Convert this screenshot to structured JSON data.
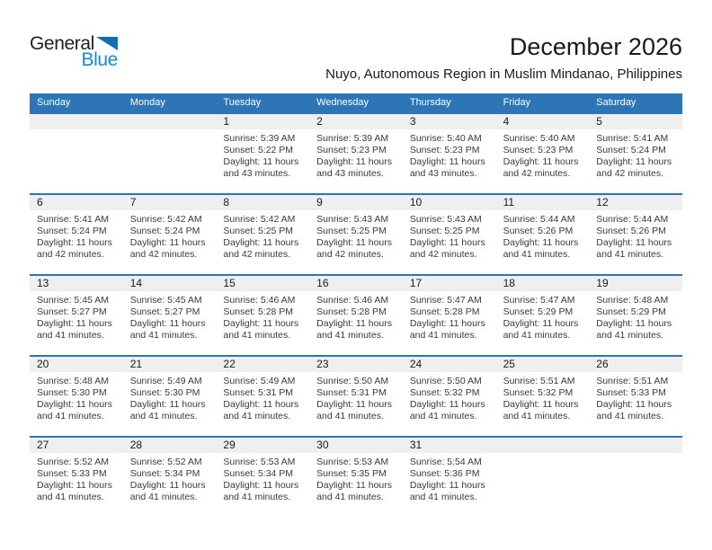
{
  "logo": {
    "text_top": "General",
    "text_bottom": "Blue"
  },
  "header": {
    "title": "December 2026",
    "subtitle": "Nuyo, Autonomous Region in Muslim Mindanao, Philippines"
  },
  "colors": {
    "header_blue": "#2e75b6",
    "band_gray": "#efefef",
    "logo_blue": "#1788d8",
    "triangle_blue": "#0f6eb4"
  },
  "calendar": {
    "weekdays": [
      "Sunday",
      "Monday",
      "Tuesday",
      "Wednesday",
      "Thursday",
      "Friday",
      "Saturday"
    ],
    "weeks": [
      [
        null,
        null,
        {
          "day": "1",
          "sunrise": "Sunrise: 5:39 AM",
          "sunset": "Sunset: 5:22 PM",
          "daylight1": "Daylight: 11 hours",
          "daylight2": "and 43 minutes."
        },
        {
          "day": "2",
          "sunrise": "Sunrise: 5:39 AM",
          "sunset": "Sunset: 5:23 PM",
          "daylight1": "Daylight: 11 hours",
          "daylight2": "and 43 minutes."
        },
        {
          "day": "3",
          "sunrise": "Sunrise: 5:40 AM",
          "sunset": "Sunset: 5:23 PM",
          "daylight1": "Daylight: 11 hours",
          "daylight2": "and 43 minutes."
        },
        {
          "day": "4",
          "sunrise": "Sunrise: 5:40 AM",
          "sunset": "Sunset: 5:23 PM",
          "daylight1": "Daylight: 11 hours",
          "daylight2": "and 42 minutes."
        },
        {
          "day": "5",
          "sunrise": "Sunrise: 5:41 AM",
          "sunset": "Sunset: 5:24 PM",
          "daylight1": "Daylight: 11 hours",
          "daylight2": "and 42 minutes."
        }
      ],
      [
        {
          "day": "6",
          "sunrise": "Sunrise: 5:41 AM",
          "sunset": "Sunset: 5:24 PM",
          "daylight1": "Daylight: 11 hours",
          "daylight2": "and 42 minutes."
        },
        {
          "day": "7",
          "sunrise": "Sunrise: 5:42 AM",
          "sunset": "Sunset: 5:24 PM",
          "daylight1": "Daylight: 11 hours",
          "daylight2": "and 42 minutes."
        },
        {
          "day": "8",
          "sunrise": "Sunrise: 5:42 AM",
          "sunset": "Sunset: 5:25 PM",
          "daylight1": "Daylight: 11 hours",
          "daylight2": "and 42 minutes."
        },
        {
          "day": "9",
          "sunrise": "Sunrise: 5:43 AM",
          "sunset": "Sunset: 5:25 PM",
          "daylight1": "Daylight: 11 hours",
          "daylight2": "and 42 minutes."
        },
        {
          "day": "10",
          "sunrise": "Sunrise: 5:43 AM",
          "sunset": "Sunset: 5:25 PM",
          "daylight1": "Daylight: 11 hours",
          "daylight2": "and 42 minutes."
        },
        {
          "day": "11",
          "sunrise": "Sunrise: 5:44 AM",
          "sunset": "Sunset: 5:26 PM",
          "daylight1": "Daylight: 11 hours",
          "daylight2": "and 41 minutes."
        },
        {
          "day": "12",
          "sunrise": "Sunrise: 5:44 AM",
          "sunset": "Sunset: 5:26 PM",
          "daylight1": "Daylight: 11 hours",
          "daylight2": "and 41 minutes."
        }
      ],
      [
        {
          "day": "13",
          "sunrise": "Sunrise: 5:45 AM",
          "sunset": "Sunset: 5:27 PM",
          "daylight1": "Daylight: 11 hours",
          "daylight2": "and 41 minutes."
        },
        {
          "day": "14",
          "sunrise": "Sunrise: 5:45 AM",
          "sunset": "Sunset: 5:27 PM",
          "daylight1": "Daylight: 11 hours",
          "daylight2": "and 41 minutes."
        },
        {
          "day": "15",
          "sunrise": "Sunrise: 5:46 AM",
          "sunset": "Sunset: 5:28 PM",
          "daylight1": "Daylight: 11 hours",
          "daylight2": "and 41 minutes."
        },
        {
          "day": "16",
          "sunrise": "Sunrise: 5:46 AM",
          "sunset": "Sunset: 5:28 PM",
          "daylight1": "Daylight: 11 hours",
          "daylight2": "and 41 minutes."
        },
        {
          "day": "17",
          "sunrise": "Sunrise: 5:47 AM",
          "sunset": "Sunset: 5:28 PM",
          "daylight1": "Daylight: 11 hours",
          "daylight2": "and 41 minutes."
        },
        {
          "day": "18",
          "sunrise": "Sunrise: 5:47 AM",
          "sunset": "Sunset: 5:29 PM",
          "daylight1": "Daylight: 11 hours",
          "daylight2": "and 41 minutes."
        },
        {
          "day": "19",
          "sunrise": "Sunrise: 5:48 AM",
          "sunset": "Sunset: 5:29 PM",
          "daylight1": "Daylight: 11 hours",
          "daylight2": "and 41 minutes."
        }
      ],
      [
        {
          "day": "20",
          "sunrise": "Sunrise: 5:48 AM",
          "sunset": "Sunset: 5:30 PM",
          "daylight1": "Daylight: 11 hours",
          "daylight2": "and 41 minutes."
        },
        {
          "day": "21",
          "sunrise": "Sunrise: 5:49 AM",
          "sunset": "Sunset: 5:30 PM",
          "daylight1": "Daylight: 11 hours",
          "daylight2": "and 41 minutes."
        },
        {
          "day": "22",
          "sunrise": "Sunrise: 5:49 AM",
          "sunset": "Sunset: 5:31 PM",
          "daylight1": "Daylight: 11 hours",
          "daylight2": "and 41 minutes."
        },
        {
          "day": "23",
          "sunrise": "Sunrise: 5:50 AM",
          "sunset": "Sunset: 5:31 PM",
          "daylight1": "Daylight: 11 hours",
          "daylight2": "and 41 minutes."
        },
        {
          "day": "24",
          "sunrise": "Sunrise: 5:50 AM",
          "sunset": "Sunset: 5:32 PM",
          "daylight1": "Daylight: 11 hours",
          "daylight2": "and 41 minutes."
        },
        {
          "day": "25",
          "sunrise": "Sunrise: 5:51 AM",
          "sunset": "Sunset: 5:32 PM",
          "daylight1": "Daylight: 11 hours",
          "daylight2": "and 41 minutes."
        },
        {
          "day": "26",
          "sunrise": "Sunrise: 5:51 AM",
          "sunset": "Sunset: 5:33 PM",
          "daylight1": "Daylight: 11 hours",
          "daylight2": "and 41 minutes."
        }
      ],
      [
        {
          "day": "27",
          "sunrise": "Sunrise: 5:52 AM",
          "sunset": "Sunset: 5:33 PM",
          "daylight1": "Daylight: 11 hours",
          "daylight2": "and 41 minutes."
        },
        {
          "day": "28",
          "sunrise": "Sunrise: 5:52 AM",
          "sunset": "Sunset: 5:34 PM",
          "daylight1": "Daylight: 11 hours",
          "daylight2": "and 41 minutes."
        },
        {
          "day": "29",
          "sunrise": "Sunrise: 5:53 AM",
          "sunset": "Sunset: 5:34 PM",
          "daylight1": "Daylight: 11 hours",
          "daylight2": "and 41 minutes."
        },
        {
          "day": "30",
          "sunrise": "Sunrise: 5:53 AM",
          "sunset": "Sunset: 5:35 PM",
          "daylight1": "Daylight: 11 hours",
          "daylight2": "and 41 minutes."
        },
        {
          "day": "31",
          "sunrise": "Sunrise: 5:54 AM",
          "sunset": "Sunset: 5:36 PM",
          "daylight1": "Daylight: 11 hours",
          "daylight2": "and 41 minutes."
        },
        null,
        null
      ]
    ]
  }
}
